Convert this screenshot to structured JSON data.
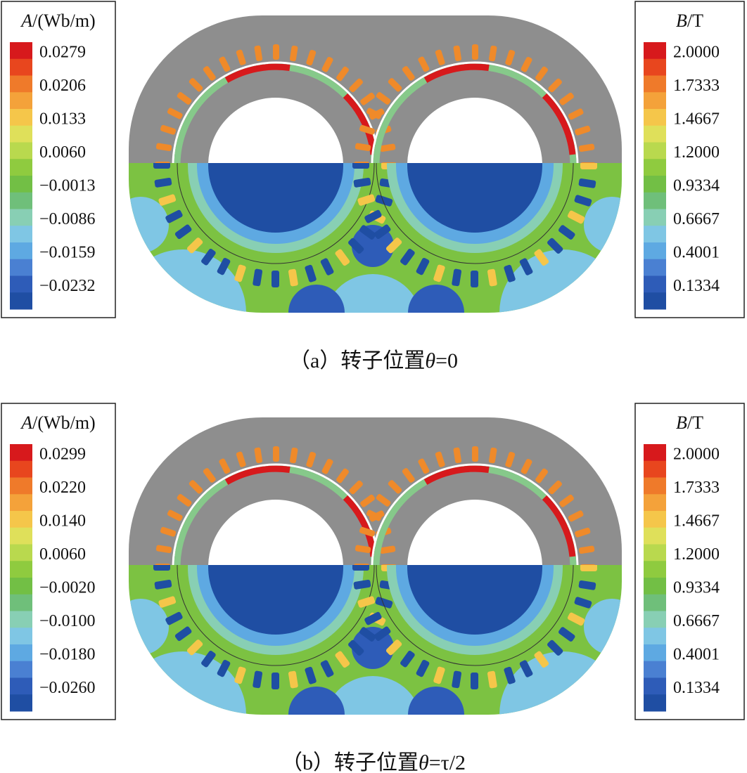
{
  "colorbar_colors": [
    "#d7191c",
    "#e8461e",
    "#ef7a2a",
    "#f4a23a",
    "#f5c64a",
    "#dfe05a",
    "#b9d94e",
    "#8fcb3f",
    "#72bf45",
    "#6fbf7a",
    "#88cfb4",
    "#7fc6e4",
    "#5ea9e2",
    "#4a80d2",
    "#2e5cb8",
    "#1f4ea3"
  ],
  "panels": [
    {
      "caption": {
        "label": "（a）转子位置",
        "symbol": "θ",
        "rest": "=0"
      },
      "left_legend": {
        "symbol": "A",
        "unit": "/(Wb/m)",
        "labels": [
          "0.0279",
          "0.0206",
          "0.0133",
          "0.0060",
          "−0.0013",
          "−0.0086",
          "−0.0159",
          "−0.0232"
        ]
      },
      "right_legend": {
        "symbol": "B",
        "unit": "/T",
        "labels": [
          "2.0000",
          "1.7333",
          "1.4667",
          "1.2000",
          "0.9334",
          "0.6667",
          "0.4001",
          "0.1334"
        ]
      }
    },
    {
      "caption": {
        "label": "（b）转子位置",
        "symbol": "θ",
        "rest": "=τ/2"
      },
      "left_legend": {
        "symbol": "A",
        "unit": "/(Wb/m)",
        "labels": [
          "0.0299",
          "0.0220",
          "0.0140",
          "0.0060",
          "−0.0020",
          "−0.0100",
          "−0.0180",
          "−0.0260"
        ]
      },
      "right_legend": {
        "symbol": "B",
        "unit": "/T",
        "labels": [
          "2.0000",
          "1.7333",
          "1.4667",
          "1.2000",
          "0.9334",
          "0.6667",
          "0.4001",
          "0.1334"
        ]
      }
    }
  ]
}
